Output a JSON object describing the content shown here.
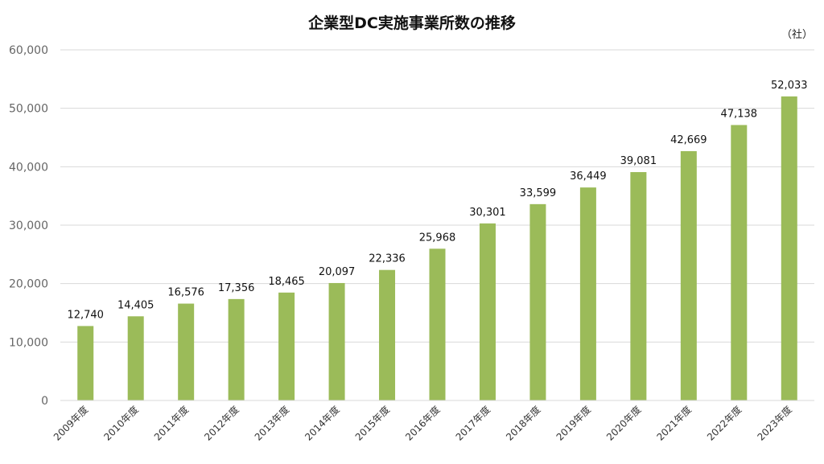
{
  "chart_data": {
    "type": "bar",
    "title": "企業型DC実施事業所数の推移",
    "unit_label": "（社）",
    "xlabel": "",
    "ylabel": "",
    "ylim": [
      0,
      60000
    ],
    "ytick_step": 10000,
    "ytick_labels": [
      "0",
      "10,000",
      "20,000",
      "30,000",
      "40,000",
      "50,000",
      "60,000"
    ],
    "grid": true,
    "legend": "none",
    "bar_color": "#9BBB59",
    "categories": [
      "2009年度",
      "2010年度",
      "2011年度",
      "2012年度",
      "2013年度",
      "2014年度",
      "2015年度",
      "2016年度",
      "2017年度",
      "2018年度",
      "2019年度",
      "2020年度",
      "2021年度",
      "2022年度",
      "2023年度"
    ],
    "values": [
      12740,
      14405,
      16576,
      17356,
      18465,
      20097,
      22336,
      25968,
      30301,
      33599,
      36449,
      39081,
      42669,
      47138,
      52033
    ],
    "data_labels": [
      "12,740",
      "14,405",
      "16,576",
      "17,356",
      "18,465",
      "20,097",
      "22,336",
      "25,968",
      "30,301",
      "33,599",
      "36,449",
      "39,081",
      "42,669",
      "47,138",
      "52,033"
    ]
  }
}
